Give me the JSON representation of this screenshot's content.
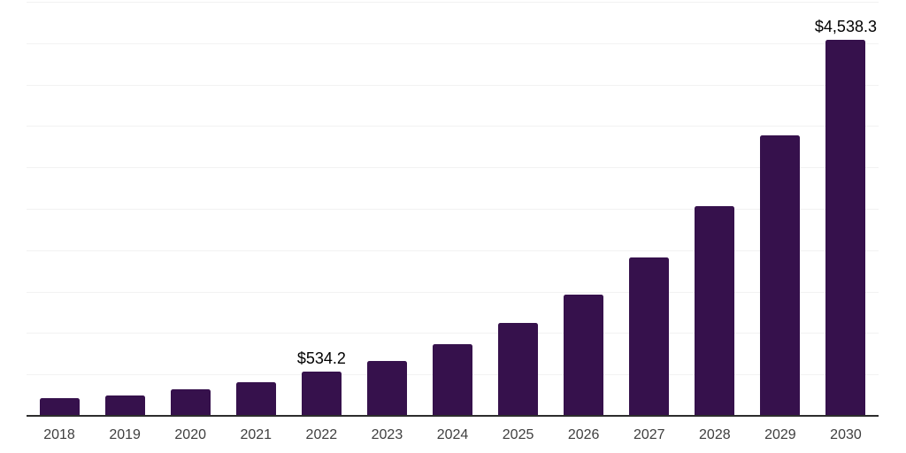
{
  "chart": {
    "background": "#ffffff",
    "bar_color": "#36114c",
    "gridline_color": "#f2f2f2",
    "axis_line_color": "#2d2d2d",
    "x_label_color": "#3f3f3f",
    "data_label_color": "#000000"
  },
  "chart_data": {
    "type": "bar",
    "title": "",
    "xlabel": "",
    "ylabel": "",
    "categories": [
      "2018",
      "2019",
      "2020",
      "2021",
      "2022",
      "2023",
      "2024",
      "2025",
      "2026",
      "2027",
      "2028",
      "2029",
      "2030"
    ],
    "values": [
      214,
      246,
      324,
      409,
      534.2,
      666,
      862,
      1122,
      1460,
      1912,
      2532,
      3384,
      4538.3
    ],
    "data_labels": {
      "2022": "$534.2",
      "2030": "$4,538.3"
    },
    "ylim": [
      0,
      5000
    ],
    "gridline_step": 500,
    "grid": true,
    "legend": false,
    "y_tick_labels_visible": false
  }
}
